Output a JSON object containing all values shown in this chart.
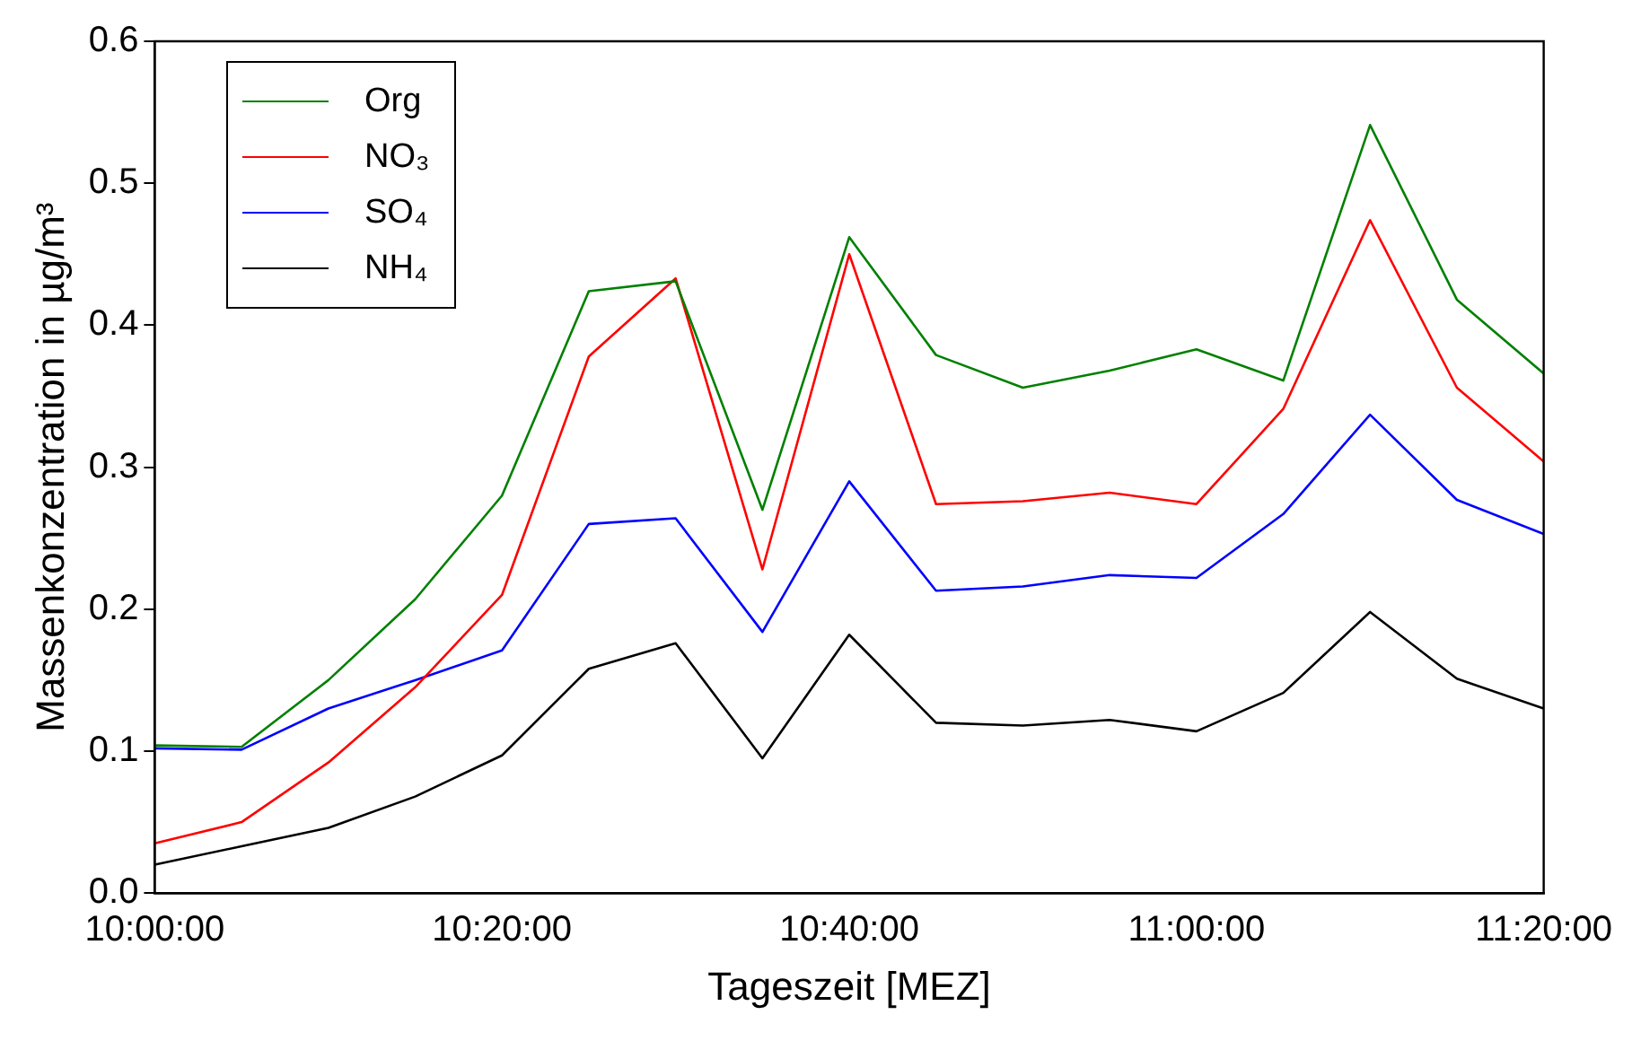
{
  "chart_data": {
    "type": "line",
    "xlabel": "Tageszeit [MEZ]",
    "ylabel": "Massenkonzentration in µg/m³",
    "x": [
      10,
      10.083333333333334,
      10.166666666666666,
      10.25,
      10.333333333333334,
      10.416666666666666,
      10.5,
      10.583333333333334,
      10.666666666666666,
      10.75,
      10.833333333333334,
      10.916666666666666,
      11,
      11.083333333333334,
      11.166666666666666,
      11.25,
      11.333333333333334
    ],
    "series": [
      {
        "name": "Org",
        "color": "#008000",
        "values": [
          0.104,
          0.103,
          0.15,
          0.207,
          0.28,
          0.424,
          0.431,
          0.27,
          0.462,
          0.379,
          0.356,
          0.368,
          0.383,
          0.361,
          0.541,
          0.418,
          0.366
        ]
      },
      {
        "name": "NO₃",
        "color": "#ff0000",
        "values": [
          0.035,
          0.05,
          0.092,
          0.145,
          0.21,
          0.378,
          0.433,
          0.228,
          0.45,
          0.274,
          0.276,
          0.282,
          0.274,
          0.341,
          0.474,
          0.356,
          0.304
        ]
      },
      {
        "name": "SO₄",
        "color": "#0000ff",
        "values": [
          0.102,
          0.101,
          0.13,
          0.15,
          0.171,
          0.26,
          0.264,
          0.184,
          0.29,
          0.213,
          0.216,
          0.224,
          0.222,
          0.267,
          0.337,
          0.277,
          0.253
        ]
      },
      {
        "name": "NH₄",
        "color": "#000000",
        "values": [
          0.02,
          0.033,
          0.046,
          0.068,
          0.097,
          0.158,
          0.176,
          0.095,
          0.182,
          0.12,
          0.118,
          0.122,
          0.114,
          0.141,
          0.198,
          0.151,
          0.13
        ]
      }
    ],
    "xlim": [
      10,
      11.333333333333334
    ],
    "xticks": [
      {
        "value": 10,
        "label": "10:00:00"
      },
      {
        "value": 10.333333333333334,
        "label": "10:20:00"
      },
      {
        "value": 10.666666666666666,
        "label": "10:40:00"
      },
      {
        "value": 11,
        "label": "11:00:00"
      },
      {
        "value": 11.333333333333334,
        "label": "11:20:00"
      }
    ],
    "ylim": [
      0,
      0.6
    ],
    "yticks": [
      {
        "value": 0,
        "label": "0.0"
      },
      {
        "value": 0.1,
        "label": "0.1"
      },
      {
        "value": 0.2,
        "label": "0.2"
      },
      {
        "value": 0.3,
        "label": "0.3"
      },
      {
        "value": 0.4,
        "label": "0.4"
      },
      {
        "value": 0.5,
        "label": "0.5"
      },
      {
        "value": 0.6,
        "label": "0.6"
      }
    ],
    "grid": false,
    "legend": "top left",
    "marker": "none",
    "line_style": "solid"
  }
}
